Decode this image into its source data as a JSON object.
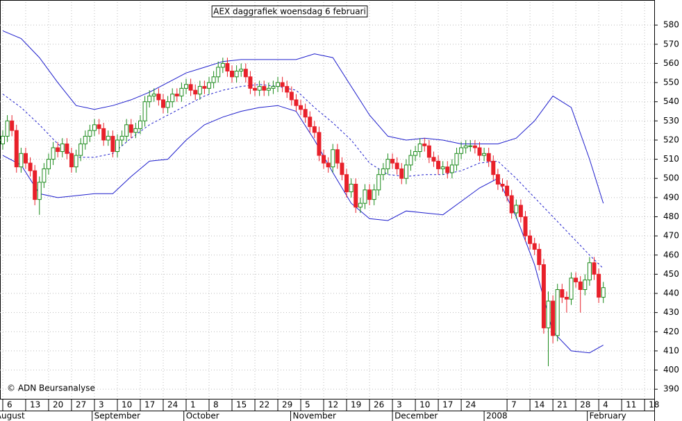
{
  "chart_data": {
    "type": "candlestick",
    "title": "AEX daggrafiek woensdag 6 februari",
    "credit": "© ADN Beursanalyse",
    "x": [
      0,
      1,
      2,
      3,
      4,
      5,
      6,
      7,
      8,
      9,
      10,
      11,
      12,
      13,
      14,
      15,
      16,
      17,
      18,
      19,
      20,
      21,
      22,
      23,
      24,
      25,
      26,
      27,
      28,
      29,
      30,
      31,
      32,
      33,
      34,
      35,
      36,
      37,
      38,
      39,
      40,
      41,
      42,
      43,
      44,
      45,
      46,
      47,
      48,
      49,
      50,
      51,
      52,
      53,
      54,
      55,
      56,
      57,
      58,
      59,
      60,
      61,
      62,
      63,
      64,
      65,
      66,
      67,
      68,
      69,
      70,
      71,
      72,
      73,
      74,
      75,
      76,
      77,
      78,
      79,
      80,
      81,
      82,
      83,
      84,
      85,
      86,
      87,
      88,
      89,
      90,
      91,
      92,
      93,
      94,
      95,
      96,
      97,
      98,
      99,
      100,
      101,
      102,
      103,
      104,
      105,
      106,
      107,
      108,
      109,
      110,
      111,
      112,
      113,
      114,
      115,
      116,
      117,
      118,
      119,
      120,
      121,
      122,
      123,
      124,
      125,
      126,
      127,
      128,
      129,
      130,
      131
    ],
    "open": [
      518,
      522,
      530,
      525,
      506,
      513,
      508,
      504,
      489,
      498,
      505,
      510,
      516,
      514,
      518,
      513,
      506,
      512,
      518,
      522,
      525,
      528,
      526,
      520,
      522,
      514,
      520,
      522,
      528,
      524,
      526,
      530,
      540,
      543,
      544,
      541,
      537,
      540,
      544,
      543,
      547,
      549,
      546,
      544,
      548,
      547,
      550,
      553,
      558,
      560,
      556,
      553,
      556,
      557,
      553,
      547,
      546,
      548,
      546,
      547,
      548,
      550,
      548,
      545,
      541,
      538,
      536,
      532,
      527,
      524,
      512,
      508,
      506,
      515,
      508,
      502,
      493,
      497,
      485,
      487,
      494,
      489,
      494,
      502,
      505,
      510,
      508,
      505,
      500,
      507,
      512,
      514,
      518,
      517,
      511,
      509,
      505,
      506,
      503,
      507,
      513,
      516,
      517,
      517,
      516,
      512,
      513,
      509,
      502,
      497,
      496,
      491,
      482,
      486,
      480,
      470,
      466,
      463,
      455,
      422,
      436,
      418,
      442,
      438,
      437,
      448,
      446,
      442,
      447,
      456,
      450,
      438
    ],
    "high": [
      525,
      533,
      533,
      528,
      516,
      516,
      511,
      507,
      501,
      508,
      513,
      519,
      519,
      521,
      521,
      516,
      515,
      521,
      525,
      528,
      531,
      531,
      529,
      525,
      525,
      523,
      525,
      531,
      531,
      529,
      533,
      543,
      546,
      547,
      547,
      544,
      543,
      547,
      547,
      550,
      552,
      552,
      549,
      551,
      551,
      553,
      556,
      561,
      563,
      563,
      559,
      559,
      560,
      560,
      556,
      550,
      551,
      551,
      550,
      551,
      553,
      553,
      551,
      548,
      544,
      541,
      539,
      535,
      530,
      527,
      515,
      511,
      518,
      518,
      511,
      505,
      500,
      500,
      490,
      497,
      497,
      497,
      505,
      508,
      513,
      513,
      511,
      508,
      510,
      515,
      517,
      521,
      521,
      520,
      514,
      512,
      509,
      509,
      510,
      516,
      519,
      520,
      520,
      520,
      519,
      516,
      516,
      512,
      505,
      500,
      499,
      494,
      489,
      489,
      483,
      473,
      469,
      466,
      458,
      441,
      439,
      445,
      445,
      441,
      451,
      451,
      449,
      450,
      459,
      459,
      453,
      446
    ],
    "low": [
      515,
      519,
      522,
      503,
      503,
      505,
      501,
      486,
      481,
      495,
      502,
      507,
      511,
      511,
      510,
      503,
      503,
      509,
      515,
      519,
      522,
      523,
      517,
      517,
      511,
      511,
      517,
      519,
      521,
      521,
      523,
      527,
      537,
      540,
      538,
      534,
      534,
      537,
      540,
      540,
      544,
      543,
      541,
      541,
      544,
      544,
      547,
      550,
      555,
      553,
      550,
      550,
      553,
      550,
      544,
      543,
      543,
      543,
      543,
      544,
      545,
      545,
      542,
      538,
      535,
      533,
      529,
      524,
      521,
      509,
      505,
      503,
      503,
      505,
      499,
      490,
      490,
      482,
      482,
      484,
      486,
      486,
      491,
      499,
      502,
      505,
      502,
      497,
      497,
      504,
      509,
      511,
      514,
      508,
      506,
      502,
      502,
      500,
      500,
      504,
      510,
      513,
      514,
      513,
      509,
      509,
      506,
      499,
      494,
      493,
      488,
      479,
      479,
      477,
      467,
      463,
      460,
      452,
      419,
      402,
      414,
      415,
      435,
      430,
      434,
      443,
      430,
      439,
      444,
      447,
      435,
      435
    ],
    "close": [
      522,
      530,
      525,
      506,
      513,
      508,
      504,
      489,
      498,
      505,
      510,
      516,
      514,
      518,
      513,
      506,
      512,
      518,
      522,
      525,
      528,
      526,
      520,
      522,
      514,
      520,
      522,
      528,
      524,
      526,
      530,
      540,
      543,
      544,
      541,
      537,
      540,
      544,
      543,
      547,
      549,
      546,
      544,
      548,
      547,
      550,
      553,
      558,
      560,
      556,
      553,
      556,
      557,
      553,
      547,
      546,
      548,
      546,
      547,
      548,
      550,
      548,
      545,
      541,
      538,
      536,
      532,
      527,
      524,
      512,
      508,
      506,
      515,
      508,
      502,
      493,
      497,
      485,
      487,
      494,
      489,
      494,
      502,
      505,
      510,
      508,
      505,
      500,
      507,
      512,
      514,
      518,
      517,
      511,
      509,
      505,
      506,
      503,
      507,
      513,
      516,
      517,
      517,
      516,
      512,
      513,
      509,
      502,
      497,
      496,
      491,
      482,
      486,
      480,
      470,
      466,
      463,
      455,
      422,
      436,
      418,
      442,
      438,
      437,
      448,
      446,
      442,
      447,
      456,
      450,
      438,
      443
    ],
    "up_color": "#1a8a1a",
    "down_color": "#e8202a",
    "bands": {
      "x": [
        0,
        4,
        8,
        12,
        16,
        20,
        24,
        28,
        32,
        36,
        40,
        44,
        48,
        52,
        56,
        60,
        64,
        68,
        72,
        76,
        80,
        84,
        88,
        92,
        96,
        100,
        104,
        108,
        112,
        116,
        120,
        124,
        128,
        131
      ],
      "upper": [
        577,
        573,
        563,
        550,
        538,
        536,
        538,
        541,
        545,
        550,
        555,
        558,
        561,
        562,
        562,
        562,
        562,
        565,
        563,
        548,
        533,
        522,
        520,
        521,
        520,
        518,
        518,
        518,
        521,
        530,
        543,
        537,
        510,
        487
      ],
      "middle": [
        544,
        537,
        528,
        518,
        511,
        511,
        513,
        521,
        528,
        533,
        538,
        543,
        546,
        548,
        549,
        548,
        546,
        537,
        529,
        520,
        508,
        502,
        501,
        502,
        502,
        504,
        508,
        509,
        500,
        490,
        480,
        470,
        460,
        453
      ],
      "lower": [
        512,
        507,
        492,
        490,
        491,
        492,
        492,
        501,
        509,
        510,
        520,
        528,
        532,
        535,
        537,
        538,
        535,
        520,
        503,
        487,
        479,
        478,
        483,
        482,
        481,
        488,
        495,
        500,
        480,
        455,
        420,
        410,
        409,
        413
      ],
      "color": "#1c1ccc"
    },
    "xlim": [
      -0.6,
      142.1
    ],
    "ylim": [
      385,
      592
    ],
    "yticks": [
      390,
      400,
      410,
      420,
      430,
      440,
      450,
      460,
      470,
      480,
      490,
      500,
      510,
      520,
      530,
      540,
      550,
      560,
      570,
      580
    ],
    "xticks": [
      {
        "value": 0,
        "label": "6"
      },
      {
        "value": 5,
        "label": "13"
      },
      {
        "value": 10,
        "label": "20"
      },
      {
        "value": 15,
        "label": "27"
      },
      {
        "value": 20,
        "label": "3"
      },
      {
        "value": 25,
        "label": "10"
      },
      {
        "value": 30,
        "label": "17"
      },
      {
        "value": 35,
        "label": "24"
      },
      {
        "value": 40,
        "label": "1"
      },
      {
        "value": 45,
        "label": "8"
      },
      {
        "value": 50,
        "label": "15"
      },
      {
        "value": 55,
        "label": "22"
      },
      {
        "value": 60,
        "label": "29"
      },
      {
        "value": 65,
        "label": "5"
      },
      {
        "value": 70,
        "label": "12"
      },
      {
        "value": 75,
        "label": "19"
      },
      {
        "value": 80,
        "label": "26"
      },
      {
        "value": 85,
        "label": "3"
      },
      {
        "value": 90,
        "label": "10"
      },
      {
        "value": 95,
        "label": "17"
      },
      {
        "value": 100,
        "label": "24"
      },
      {
        "value": 110,
        "label": "7"
      },
      {
        "value": 115,
        "label": "14"
      },
      {
        "value": 120,
        "label": "21"
      },
      {
        "value": 125,
        "label": "28"
      },
      {
        "value": 130,
        "label": "4"
      },
      {
        "value": 135,
        "label": "11"
      },
      {
        "value": 140,
        "label": "18"
      }
    ],
    "month_labels": [
      {
        "value": -2,
        "label": "August"
      },
      {
        "value": 19.5,
        "label": "September"
      },
      {
        "value": 39.5,
        "label": "October"
      },
      {
        "value": 62.8,
        "label": "November"
      },
      {
        "value": 85,
        "label": "December"
      },
      {
        "value": 105,
        "label": "2008"
      },
      {
        "value": 127.5,
        "label": "February"
      }
    ],
    "grid": true
  }
}
